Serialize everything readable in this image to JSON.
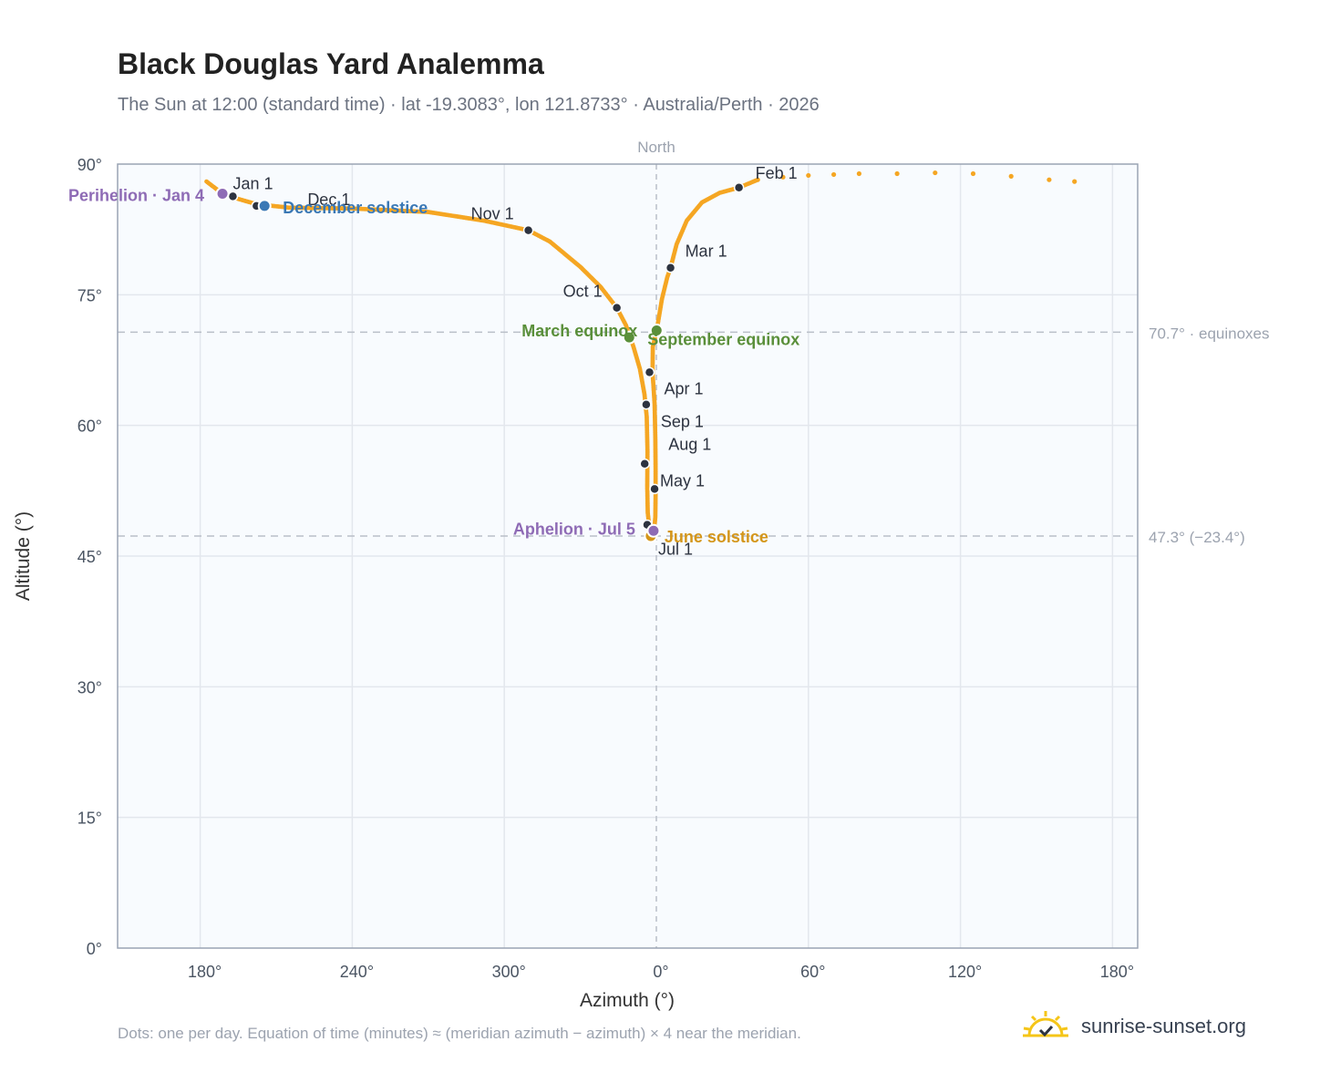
{
  "header": {
    "title": "Black Douglas Yard Analemma",
    "subtitle": "The Sun at 12:00 (standard time) · lat -19.3083°, lon 121.8733° · Australia/Perth · 2026"
  },
  "footer": {
    "note": "Dots: one per day. Equation of time (minutes) ≈ (meridian azimuth − azimuth) × 4 near the meridian.",
    "brand": "sunrise-sunset.org"
  },
  "chart_data": {
    "type": "scatter",
    "title": "Black Douglas Yard Analemma",
    "xlabel": "Azimuth (°)",
    "ylabel": "Altitude (°)",
    "x_axis": {
      "center_label": "North",
      "ticks": [
        "180°",
        "240°",
        "300°",
        "0°",
        "60°",
        "120°",
        "180°"
      ]
    },
    "y_axis": {
      "range": [
        0,
        90
      ],
      "ticks": [
        "0°",
        "15°",
        "30°",
        "45°",
        "60°",
        "75°",
        "90°"
      ]
    },
    "grid": true,
    "colors": {
      "path": "#f5a623",
      "month": "#2d3340",
      "equinox": "#5a8f3a",
      "december": "#3a78b5",
      "june": "#d4961a",
      "apsis": "#8e6bb5",
      "reference": "#b9bfc8"
    },
    "reference_lines": [
      {
        "altitude": 70.7,
        "label": "70.7° · equinoxes"
      },
      {
        "altitude": 47.3,
        "label": "47.3° (−23.4°)"
      }
    ],
    "months": [
      {
        "label": "Jan 1",
        "azimuth": 192.9,
        "altitude": 86.3
      },
      {
        "label": "Feb 1",
        "azimuth": 32.6,
        "altitude": 87.3
      },
      {
        "label": "Mar 1",
        "azimuth": 5.6,
        "altitude": 78.1
      },
      {
        "label": "Apr 1",
        "azimuth": 357.3,
        "altitude": 66.1
      },
      {
        "label": "May 1",
        "azimuth": 359.3,
        "altitude": 52.7
      },
      {
        "label": "Jul 1",
        "azimuth": 356.4,
        "altitude": 48.6
      },
      {
        "label": "Aug 1",
        "azimuth": 355.4,
        "altitude": 55.6
      },
      {
        "label": "Sep 1",
        "azimuth": 356.0,
        "altitude": 62.4
      },
      {
        "label": "Oct 1",
        "azimuth": 344.4,
        "altitude": 73.5
      },
      {
        "label": "Nov 1",
        "azimuth": 309.5,
        "altitude": 82.4
      },
      {
        "label": "Dec 1",
        "azimuth": 202.2,
        "altitude": 85.2
      }
    ],
    "events": [
      {
        "label": "March equinox",
        "kind": "equinox",
        "azimuth": 349.3,
        "altitude": 70.1
      },
      {
        "label": "September equinox",
        "kind": "equinox",
        "azimuth": 0.1,
        "altitude": 70.9
      },
      {
        "label": "June solstice",
        "kind": "june",
        "azimuth": 357.8,
        "altitude": 47.3
      },
      {
        "label": "December solstice",
        "kind": "december",
        "azimuth": 205.4,
        "altitude": 85.2
      },
      {
        "label": "Perihelion · Jan 4",
        "kind": "apsis",
        "azimuth": 188.8,
        "altitude": 86.6
      },
      {
        "label": "Aphelion · Jul 5",
        "kind": "apsis",
        "azimuth": 358.9,
        "altitude": 47.9
      }
    ],
    "path_points": [
      [
        182.5,
        88.0
      ],
      [
        188.8,
        86.6
      ],
      [
        195.0,
        86.0
      ],
      [
        202.2,
        85.4
      ],
      [
        215.0,
        85.0
      ],
      [
        240.0,
        84.9
      ],
      [
        270.0,
        84.5
      ],
      [
        292.0,
        83.5
      ],
      [
        309.5,
        82.4
      ],
      [
        318.0,
        81.1
      ],
      [
        330.0,
        78.2
      ],
      [
        338.0,
        75.9
      ],
      [
        344.4,
        73.5
      ],
      [
        348.0,
        71.5
      ],
      [
        351.0,
        69.0
      ],
      [
        353.5,
        66.5
      ],
      [
        355.3,
        63.6
      ],
      [
        356.2,
        61.0
      ],
      [
        356.5,
        57.0
      ],
      [
        356.4,
        53.0
      ],
      [
        356.6,
        50.0
      ],
      [
        357.2,
        48.4
      ],
      [
        358.2,
        47.4
      ],
      [
        359.1,
        47.8
      ],
      [
        359.6,
        49.5
      ],
      [
        359.7,
        52.0
      ],
      [
        359.7,
        55.0
      ],
      [
        359.6,
        58.5
      ],
      [
        359.3,
        62.5
      ],
      [
        358.5,
        66.1
      ],
      [
        358.6,
        69.0
      ],
      [
        0.2,
        71.0
      ],
      [
        2.2,
        74.5
      ],
      [
        4.3,
        77.0
      ],
      [
        5.6,
        78.1
      ],
      [
        8.0,
        80.8
      ],
      [
        12.0,
        83.5
      ],
      [
        18.0,
        85.6
      ],
      [
        25.0,
        86.7
      ],
      [
        32.6,
        87.3
      ],
      [
        40.0,
        88.2
      ],
      [
        50.0,
        88.5
      ],
      [
        60.0,
        88.7
      ],
      [
        70.0,
        88.8
      ],
      [
        80.0,
        88.9
      ],
      [
        95.0,
        88.9
      ],
      [
        110.0,
        89.0
      ],
      [
        125.0,
        88.9
      ],
      [
        140.0,
        88.6
      ],
      [
        155.0,
        88.2
      ],
      [
        165.0,
        88.0
      ]
    ]
  }
}
